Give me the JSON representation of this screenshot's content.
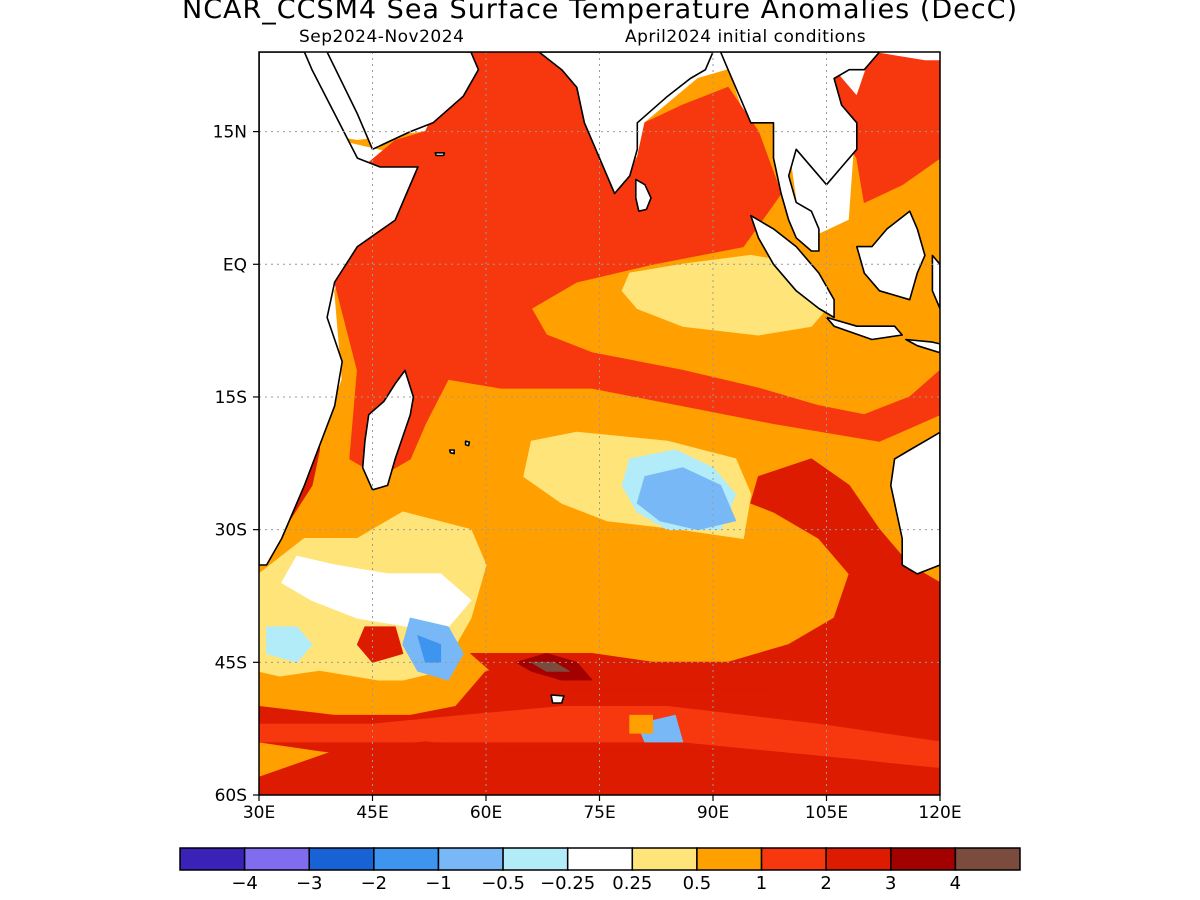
{
  "title": "NCAR_CCSM4 Sea Surface Temperature Anomalies (DecC)",
  "subtitle_left": "Sep2024-Nov2024",
  "subtitle_right": "April2024 initial conditions",
  "map": {
    "lon_range": [
      30,
      120
    ],
    "lat_range": [
      -60,
      24
    ],
    "lon_ticks": [
      {
        "value": 30,
        "label": "30E"
      },
      {
        "value": 45,
        "label": "45E"
      },
      {
        "value": 60,
        "label": "60E"
      },
      {
        "value": 75,
        "label": "75E"
      },
      {
        "value": 90,
        "label": "90E"
      },
      {
        "value": 105,
        "label": "105E"
      },
      {
        "value": 120,
        "label": "120E"
      }
    ],
    "lat_ticks": [
      {
        "value": 15,
        "label": "15N"
      },
      {
        "value": 0,
        "label": "EQ"
      },
      {
        "value": -15,
        "label": "15S"
      },
      {
        "value": -30,
        "label": "30S"
      },
      {
        "value": -45,
        "label": "45S"
      },
      {
        "value": -60,
        "label": "60S"
      }
    ],
    "grid": "dotted",
    "land_color": "#ffffff",
    "coastline_color": "#000000"
  },
  "colorbar": {
    "colors": [
      "#3a22b8",
      "#7f6cee",
      "#1763d6",
      "#3d95f0",
      "#78b8f6",
      "#b2ecf8",
      "#ffffff",
      "#ffe47a",
      "#ffa000",
      "#f7380e",
      "#dd1b00",
      "#a30000",
      "#7b4b3e"
    ],
    "labels": [
      "-4",
      "-3",
      "-2",
      "-1",
      "-0.5",
      "-0.25",
      "0.25",
      "0.5",
      "1",
      "2",
      "3",
      "4"
    ]
  },
  "regions": [
    {
      "level": 0.5,
      "name": "indian-ocean-basin",
      "points": [
        [
          36,
          15
        ],
        [
          43,
          14
        ],
        [
          52,
          15
        ],
        [
          57,
          24
        ],
        [
          67,
          24
        ],
        [
          73,
          21
        ],
        [
          76,
          14
        ],
        [
          80,
          12
        ],
        [
          81,
          16
        ],
        [
          88,
          21
        ],
        [
          92,
          22
        ],
        [
          94,
          17
        ],
        [
          98,
          16
        ],
        [
          100,
          13
        ],
        [
          101,
          7
        ],
        [
          103,
          3
        ],
        [
          108,
          5
        ],
        [
          109,
          17
        ],
        [
          120,
          23
        ],
        [
          120,
          -60
        ],
        [
          30,
          -60
        ],
        [
          30,
          -34
        ],
        [
          36,
          -25
        ],
        [
          41,
          -13
        ],
        [
          40,
          -3
        ],
        [
          45,
          6
        ],
        [
          51,
          12
        ]
      ]
    },
    {
      "level": 1.0,
      "name": "north-tropical-warm-tongue",
      "points": [
        [
          41,
          9
        ],
        [
          48,
          14
        ],
        [
          52,
          15
        ],
        [
          57,
          24
        ],
        [
          67,
          24
        ],
        [
          73,
          21
        ],
        [
          76,
          13
        ],
        [
          78,
          9
        ],
        [
          80,
          12
        ],
        [
          81,
          16
        ],
        [
          86,
          18
        ],
        [
          92,
          20
        ],
        [
          96,
          15
        ],
        [
          99,
          8
        ],
        [
          94,
          2
        ],
        [
          82,
          0
        ],
        [
          72,
          -2
        ],
        [
          66,
          -5
        ],
        [
          68,
          -8
        ],
        [
          74,
          -10
        ],
        [
          86,
          -12
        ],
        [
          96,
          -14
        ],
        [
          104,
          -16
        ],
        [
          110,
          -17
        ],
        [
          116,
          -15
        ],
        [
          120,
          -12
        ],
        [
          120,
          -17
        ],
        [
          112,
          -20
        ],
        [
          98,
          -18
        ],
        [
          86,
          -16
        ],
        [
          74,
          -14
        ],
        [
          62,
          -14
        ],
        [
          55,
          -13
        ],
        [
          52,
          -18
        ],
        [
          50,
          -22
        ],
        [
          46,
          -24
        ],
        [
          42,
          -22
        ],
        [
          43,
          -12
        ],
        [
          40,
          -2
        ]
      ]
    },
    {
      "level": 1.0,
      "name": "south-china-sea-warm",
      "points": [
        [
          106,
          22
        ],
        [
          109,
          19
        ],
        [
          111,
          24
        ],
        [
          118,
          23
        ],
        [
          120,
          23
        ],
        [
          120,
          12
        ],
        [
          115,
          9
        ],
        [
          110,
          7
        ],
        [
          109,
          12
        ],
        [
          107,
          15
        ]
      ]
    },
    {
      "level": 0.5,
      "name": "central-south-cool-band",
      "points": [
        [
          56,
          -16
        ],
        [
          60,
          -19
        ],
        [
          70,
          -18
        ],
        [
          84,
          -18
        ],
        [
          92,
          -20
        ],
        [
          96,
          -25
        ],
        [
          96,
          -32
        ],
        [
          86,
          -31
        ],
        [
          78,
          -33
        ],
        [
          72,
          -34
        ],
        [
          62,
          -30
        ],
        [
          55,
          -27
        ],
        [
          48,
          -27
        ],
        [
          44,
          -30
        ],
        [
          40,
          -31
        ],
        [
          46,
          -28
        ],
        [
          50,
          -26
        ],
        [
          54,
          -22
        ]
      ]
    },
    {
      "level": 0.25,
      "name": "equatorial-east-cool",
      "points": [
        [
          79,
          -1
        ],
        [
          86,
          0
        ],
        [
          95,
          1
        ],
        [
          102,
          0
        ],
        [
          106,
          -4
        ],
        [
          103,
          -7
        ],
        [
          96,
          -8
        ],
        [
          86,
          -7
        ],
        [
          80,
          -5
        ],
        [
          78,
          -3
        ]
      ]
    },
    {
      "level": 0.25,
      "name": "subtropical-south-cool",
      "points": [
        [
          66,
          -20
        ],
        [
          72,
          -19
        ],
        [
          84,
          -20
        ],
        [
          93,
          -22
        ],
        [
          95,
          -26
        ],
        [
          94,
          -31
        ],
        [
          86,
          -30
        ],
        [
          76,
          -29
        ],
        [
          70,
          -27
        ],
        [
          65,
          -24
        ]
      ]
    },
    {
      "level": -0.5,
      "name": "subtropical-south-blue",
      "points": [
        [
          79,
          -22
        ],
        [
          85,
          -21
        ],
        [
          90,
          -23
        ],
        [
          93,
          -26
        ],
        [
          91,
          -30
        ],
        [
          84,
          -30
        ],
        [
          80,
          -28
        ],
        [
          78,
          -25
        ]
      ]
    },
    {
      "level": -1.0,
      "name": "subtropical-south-blue-core",
      "points": [
        [
          81,
          -24
        ],
        [
          86,
          -23
        ],
        [
          91,
          -25
        ],
        [
          93,
          -29
        ],
        [
          88,
          -30
        ],
        [
          83,
          -29
        ],
        [
          80,
          -27
        ]
      ]
    },
    {
      "level": 0.25,
      "name": "southwest-cool-sector",
      "points": [
        [
          30,
          -35
        ],
        [
          36,
          -31
        ],
        [
          43,
          -31
        ],
        [
          49,
          -28
        ],
        [
          58,
          -30
        ],
        [
          60,
          -34
        ],
        [
          58,
          -40
        ],
        [
          54,
          -46
        ],
        [
          49,
          -47
        ],
        [
          42,
          -47
        ],
        [
          35,
          -47
        ],
        [
          30,
          -46
        ]
      ]
    },
    {
      "level": -0.25,
      "name": "southwest-light-blue",
      "points": [
        [
          35,
          -33
        ],
        [
          40,
          -34
        ],
        [
          47,
          -35
        ],
        [
          54,
          -35
        ],
        [
          58,
          -38
        ],
        [
          55,
          -41
        ],
        [
          50,
          -41
        ],
        [
          43,
          -40
        ],
        [
          37,
          -38
        ],
        [
          33,
          -36
        ]
      ]
    },
    {
      "level": 0.5,
      "name": "southwest-yellow-band",
      "points": [
        [
          30,
          -47
        ],
        [
          38,
          -46
        ],
        [
          45,
          -47
        ],
        [
          52,
          -48
        ],
        [
          58,
          -46
        ],
        [
          62,
          -44
        ],
        [
          66,
          -42
        ],
        [
          72,
          -42
        ],
        [
          80,
          -43
        ],
        [
          80,
          -46
        ],
        [
          66,
          -47
        ],
        [
          56,
          -50
        ],
        [
          44,
          -50
        ],
        [
          30,
          -49
        ]
      ]
    },
    {
      "level": 2.0,
      "name": "southeast-warm-sector",
      "points": [
        [
          96,
          -24
        ],
        [
          103,
          -22
        ],
        [
          108,
          -25
        ],
        [
          112,
          -30
        ],
        [
          116,
          -34
        ],
        [
          120,
          -36
        ],
        [
          120,
          -60
        ],
        [
          92,
          -58
        ],
        [
          80,
          -57
        ],
        [
          70,
          -56
        ],
        [
          60,
          -55
        ],
        [
          48,
          -56
        ],
        [
          38,
          -55
        ],
        [
          30,
          -54
        ],
        [
          30,
          -50
        ],
        [
          40,
          -51
        ],
        [
          50,
          -51
        ],
        [
          56,
          -50
        ],
        [
          60,
          -46
        ],
        [
          70,
          -45
        ],
        [
          80,
          -46
        ],
        [
          90,
          -46
        ],
        [
          100,
          -44
        ],
        [
          106,
          -40
        ],
        [
          108,
          -35
        ],
        [
          104,
          -31
        ],
        [
          98,
          -28
        ],
        [
          95,
          -27
        ]
      ]
    },
    {
      "level": 1.0,
      "name": "southern-yellow-stripe",
      "points": [
        [
          57,
          -51
        ],
        [
          70,
          -50
        ],
        [
          84,
          -50
        ],
        [
          94,
          -51
        ],
        [
          104,
          -52
        ],
        [
          112,
          -53
        ],
        [
          120,
          -54
        ],
        [
          120,
          -57
        ],
        [
          110,
          -56
        ],
        [
          98,
          -55
        ],
        [
          86,
          -54
        ],
        [
          72,
          -54
        ],
        [
          60,
          -54
        ],
        [
          50,
          -54
        ],
        [
          40,
          -54
        ],
        [
          30,
          -54
        ],
        [
          30,
          -52
        ],
        [
          45,
          -52
        ]
      ]
    },
    {
      "level": 2.0,
      "name": "southern-red-stripe",
      "points": [
        [
          40,
          -55
        ],
        [
          52,
          -54
        ],
        [
          62,
          -55
        ],
        [
          72,
          -55
        ],
        [
          84,
          -55
        ],
        [
          96,
          -55
        ],
        [
          108,
          -56
        ],
        [
          120,
          -57
        ],
        [
          120,
          -60
        ],
        [
          30,
          -60
        ],
        [
          30,
          -58
        ]
      ]
    },
    {
      "level": 2.0,
      "name": "mozambique-warm",
      "points": [
        [
          31,
          -33
        ],
        [
          34,
          -29
        ],
        [
          37,
          -25
        ],
        [
          38,
          -21
        ],
        [
          38,
          -19
        ],
        [
          35,
          -21
        ],
        [
          32,
          -26
        ],
        [
          31,
          -29
        ]
      ]
    },
    {
      "level": 2.0,
      "name": "agulhas-warm-core",
      "points": [
        [
          58,
          -44
        ],
        [
          66,
          -44
        ],
        [
          74,
          -44
        ],
        [
          82,
          -45
        ],
        [
          92,
          -45
        ],
        [
          100,
          -43
        ],
        [
          106,
          -40
        ],
        [
          104,
          -45
        ],
        [
          98,
          -48
        ],
        [
          90,
          -48
        ],
        [
          80,
          -48
        ],
        [
          70,
          -48
        ],
        [
          62,
          -47
        ]
      ]
    },
    {
      "level": 3.0,
      "name": "kerguelen-core",
      "points": [
        [
          64,
          -45
        ],
        [
          68,
          -44
        ],
        [
          72,
          -45
        ],
        [
          74,
          -47
        ],
        [
          70,
          -47
        ],
        [
          66,
          -46
        ]
      ]
    },
    {
      "level": 4.0,
      "name": "kerguelen-peak",
      "points": [
        [
          66,
          -45
        ],
        [
          69,
          -45
        ],
        [
          71,
          -46
        ],
        [
          68,
          -46
        ]
      ]
    },
    {
      "level": -0.5,
      "name": "southwest-blue-left",
      "points": [
        [
          31,
          -41
        ],
        [
          35,
          -41
        ],
        [
          37,
          -43
        ],
        [
          35,
          -45
        ],
        [
          31,
          -44
        ]
      ]
    },
    {
      "level": -1.0,
      "name": "southwest-blue-mid",
      "points": [
        [
          50,
          -40
        ],
        [
          55,
          -41
        ],
        [
          57,
          -44
        ],
        [
          55,
          -47
        ],
        [
          51,
          -46
        ],
        [
          49,
          -43
        ]
      ]
    },
    {
      "level": -2.0,
      "name": "southwest-blue-mid-core",
      "points": [
        [
          51,
          -42
        ],
        [
          54,
          -43
        ],
        [
          54,
          -45
        ],
        [
          52,
          -45
        ]
      ]
    },
    {
      "level": -1.0,
      "name": "southeast-blue-small",
      "points": [
        [
          80,
          -52
        ],
        [
          85,
          -51
        ],
        [
          86,
          -54
        ],
        [
          81,
          -54
        ]
      ]
    },
    {
      "level": 0.5,
      "name": "east-yellow-patch",
      "points": [
        [
          96,
          -30
        ],
        [
          100,
          -30
        ],
        [
          102,
          -33
        ],
        [
          98,
          -34
        ],
        [
          96,
          -32
        ]
      ]
    },
    {
      "level": 2.0,
      "name": "west-warm-small",
      "points": [
        [
          44,
          -41
        ],
        [
          48,
          -41
        ],
        [
          49,
          -44
        ],
        [
          45,
          -45
        ],
        [
          43,
          -43
        ]
      ]
    },
    {
      "level": 0.5,
      "name": "south-yellow-spot",
      "points": [
        [
          79,
          -51
        ],
        [
          82,
          -51
        ],
        [
          82,
          -53
        ],
        [
          79,
          -53
        ]
      ]
    }
  ]
}
